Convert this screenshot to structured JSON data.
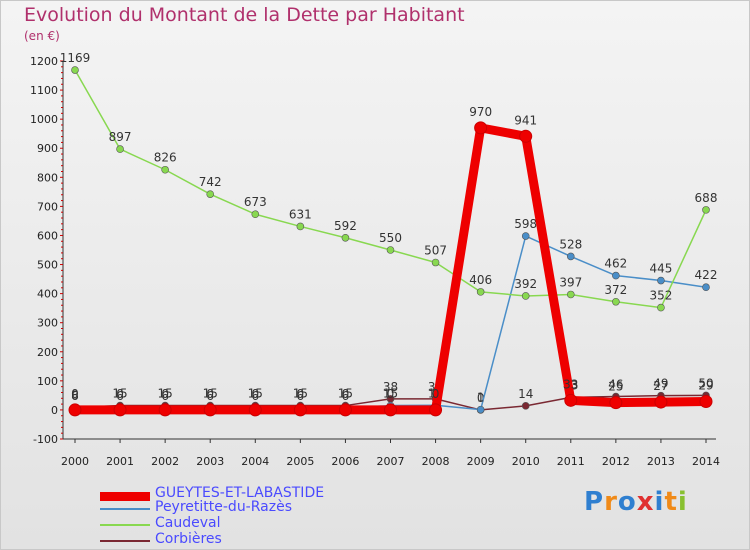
{
  "chart_data": {
    "type": "line",
    "title": "Evolution du Montant de la Dette par Habitant",
    "unit": "(en €)",
    "categories": [
      "2000",
      "2001",
      "2002",
      "2003",
      "2004",
      "2005",
      "2006",
      "2007",
      "2008",
      "2009",
      "2010",
      "2011",
      "2012",
      "2013",
      "2014"
    ],
    "ylim": [
      -100,
      1200
    ],
    "yticks": [
      -100,
      0,
      100,
      200,
      300,
      400,
      500,
      600,
      700,
      800,
      900,
      1000,
      1100,
      1200
    ],
    "series": [
      {
        "name": "GUEYTES-ET-LABASTIDE",
        "color": "#ee0000",
        "values": [
          0,
          0,
          0,
          0,
          0,
          0,
          0,
          0,
          0,
          970,
          941,
          33,
          25,
          27,
          29
        ]
      },
      {
        "name": "Peyretitte-du-Razès",
        "color": "#4a8ec8",
        "values": [
          6,
          6,
          6,
          6,
          6,
          6,
          6,
          15,
          16,
          1,
          598,
          528,
          462,
          445,
          422
        ]
      },
      {
        "name": "Caudeval",
        "color": "#88d850",
        "values": [
          1169,
          897,
          826,
          742,
          673,
          631,
          592,
          550,
          507,
          406,
          392,
          397,
          372,
          352,
          688
        ]
      },
      {
        "name": "Corbières",
        "color": "#7a2832",
        "values": [
          8,
          15,
          15,
          15,
          15,
          15,
          15,
          38,
          38,
          0,
          14,
          43,
          46,
          49,
          50
        ]
      }
    ]
  },
  "legend": [
    "GUEYTES-ET-LABASTIDE",
    "Peyretitte-du-Razès",
    "Caudeval",
    "Corbières"
  ],
  "logo": {
    "text": "Proxiti"
  }
}
